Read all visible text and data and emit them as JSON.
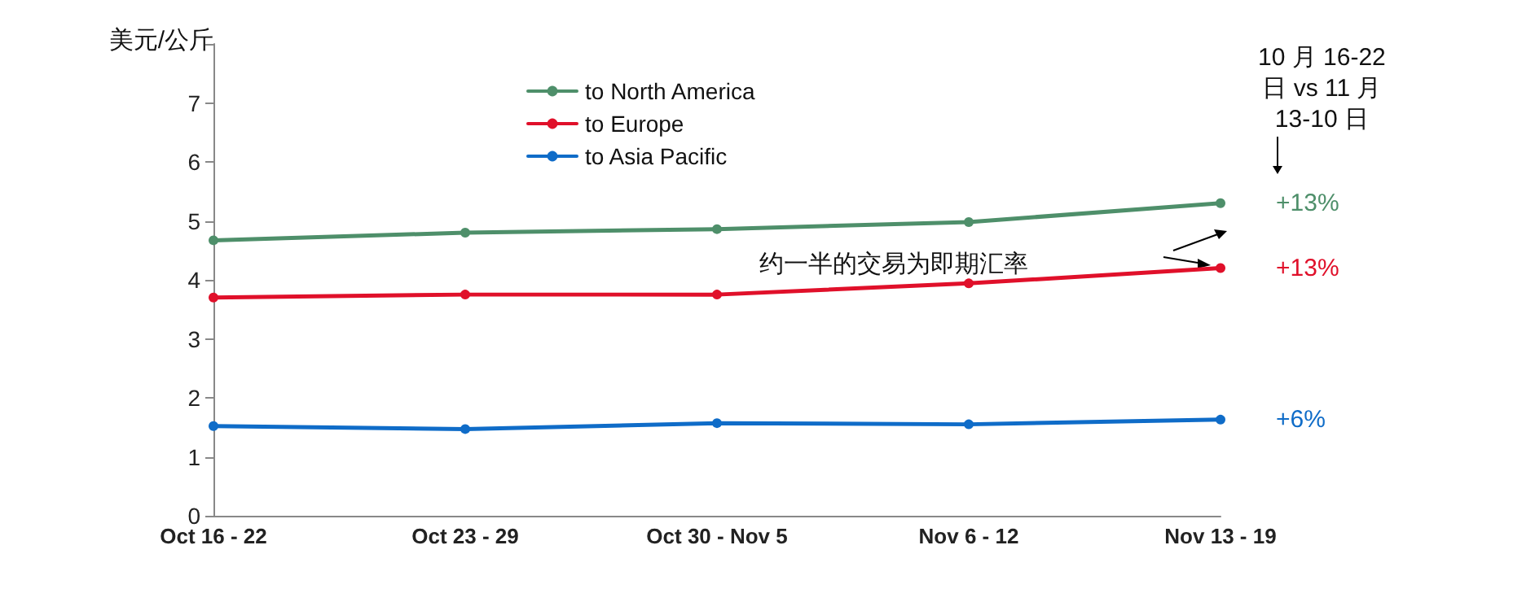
{
  "chart_data": {
    "type": "line",
    "ylabel": "美元/公斤",
    "categories": [
      "Oct 16 - 22",
      "Oct 23 - 29",
      "Oct 30 - Nov 5",
      "Nov 6 - 12",
      "Nov 13 - 19"
    ],
    "series": [
      {
        "name": "to North America",
        "color": "#4e8f6a",
        "values": [
          4.67,
          4.8,
          4.86,
          4.98,
          5.3
        ]
      },
      {
        "name": "to Europe",
        "color": "#e0102a",
        "values": [
          3.7,
          3.75,
          3.75,
          3.94,
          4.2
        ]
      },
      {
        "name": "to Asia Pacific",
        "color": "#0f6cc8",
        "values": [
          1.52,
          1.47,
          1.57,
          1.55,
          1.63
        ]
      }
    ],
    "ylim": [
      0,
      8
    ],
    "yticks": [
      0,
      1,
      2,
      3,
      4,
      5,
      6,
      7,
      {
        "value": 8,
        "label": null
      }
    ],
    "annotations": [
      "10 月 16-22\n日 vs 11 月\n13-10 日",
      "约一半的交易为即期汇率",
      {
        "text": "+13%",
        "x": "Nov 13 - 19",
        "y": 5.3
      },
      {
        "text": "+13%",
        "x": "Nov 13 - 19",
        "y": 4.2
      },
      {
        "text": "+6%",
        "x": "Nov 13 - 19",
        "y": 1.63
      }
    ],
    "grid": false,
    "legend": "top",
    "marker": "circle",
    "line_style": "solid"
  }
}
